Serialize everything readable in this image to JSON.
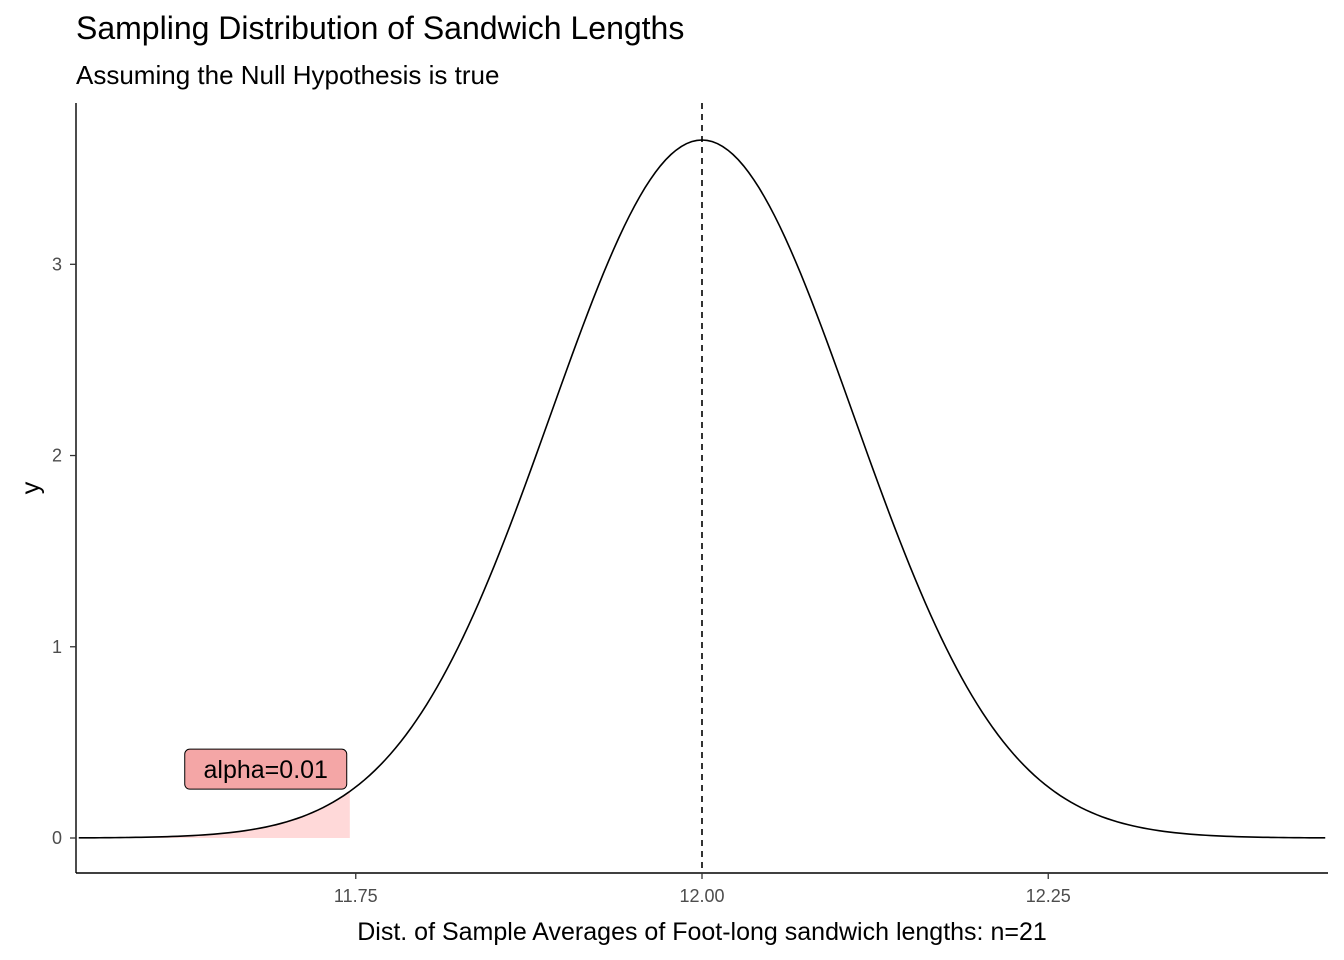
{
  "chart_data": {
    "type": "area",
    "title": "Sampling Distribution of Sandwich Lengths",
    "subtitle": "Assuming the Null Hypothesis is true",
    "xlabel": "Dist. of Sample Averages of Foot-long sandwich lengths: n=21",
    "ylabel": "y",
    "xlim": [
      11.548,
      12.452
    ],
    "ylim": [
      0,
      3.65
    ],
    "x_ticks": [
      11.75,
      12.0,
      12.25
    ],
    "x_tick_labels": [
      "11.75",
      "12.00",
      "12.25"
    ],
    "y_ticks": [
      0,
      1,
      2,
      3
    ],
    "y_tick_labels": [
      "0",
      "1",
      "2",
      "3"
    ],
    "series": [
      {
        "type": "line",
        "distribution": "normal",
        "mean": 12.0,
        "sd": 0.1093,
        "x_from": 11.55,
        "x_to": 12.45,
        "color": "#000000"
      },
      {
        "type": "area",
        "distribution": "normal",
        "mean": 12.0,
        "sd": 0.1093,
        "x_from": 11.55,
        "x_to": 11.7457,
        "color": "#ffd9d9"
      }
    ],
    "vline": {
      "x": 12.0,
      "style": "dashed",
      "color": "#000000"
    },
    "annotations": [
      {
        "text": "alpha=0.01",
        "x": 11.685,
        "y": 0.36,
        "fill": "#f4a6a6"
      }
    ],
    "grid": false,
    "legend": "none"
  }
}
